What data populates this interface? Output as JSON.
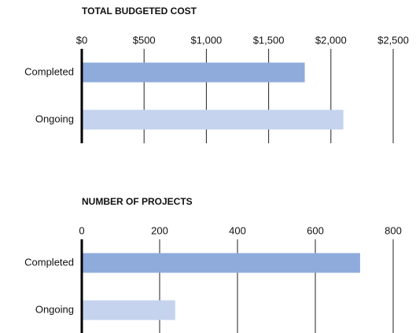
{
  "chart_data": [
    {
      "type": "bar",
      "orientation": "horizontal",
      "title": "TOTAL BUDGETED COST",
      "categories": [
        "Completed",
        "Ongoing"
      ],
      "values": [
        1790,
        2100
      ],
      "colors": [
        "#8eabdb",
        "#c5d3ee"
      ],
      "xlim": [
        0,
        2500
      ],
      "xticks": [
        {
          "value": 0,
          "label": "$0"
        },
        {
          "value": 500,
          "label": "$500"
        },
        {
          "value": 1000,
          "label": "$1,000"
        },
        {
          "value": 1500,
          "label": "$1,500"
        },
        {
          "value": 2000,
          "label": "$2,000"
        },
        {
          "value": 2500,
          "label": "$2,500"
        }
      ],
      "grid": true
    },
    {
      "type": "bar",
      "orientation": "horizontal",
      "title": "NUMBER OF PROJECTS",
      "categories": [
        "Completed",
        "Ongoing"
      ],
      "values": [
        715,
        240
      ],
      "colors": [
        "#8eabdb",
        "#c5d3ee"
      ],
      "xlim": [
        0,
        800
      ],
      "xticks": [
        0,
        200,
        400,
        600,
        800
      ],
      "grid": true
    }
  ]
}
